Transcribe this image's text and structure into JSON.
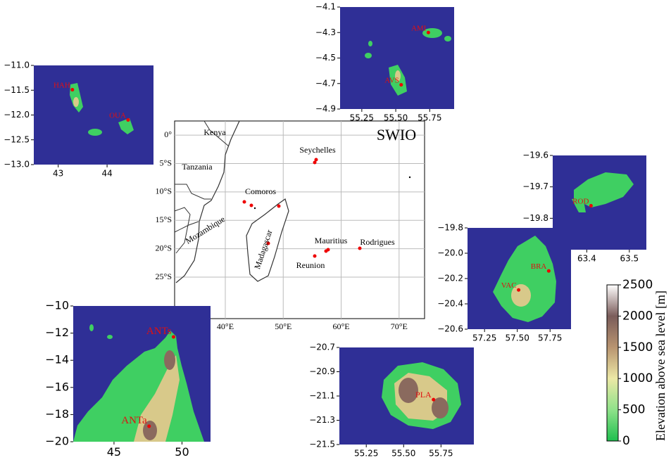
{
  "main_map": {
    "title": "SWIO",
    "xlim": [
      31.25,
      74.4
    ],
    "ylim": [
      -32.3,
      2.5
    ],
    "xticks": [
      {
        "value": 40,
        "label": "40°E"
      },
      {
        "value": 50,
        "label": "50°E"
      },
      {
        "value": 60,
        "label": "60°E"
      },
      {
        "value": 70,
        "label": "70°E"
      }
    ],
    "yticks": [
      {
        "value": 0,
        "label": "0°"
      },
      {
        "value": -5,
        "label": "5°S"
      },
      {
        "value": -10,
        "label": "10°S"
      },
      {
        "value": -15,
        "label": "15°S"
      },
      {
        "value": -20,
        "label": "20°S"
      },
      {
        "value": -25,
        "label": "25°S"
      }
    ],
    "countries": [
      "Kenya",
      "Tanzania",
      "Mozambique",
      "Madagascar"
    ],
    "regions": [
      "Comoros",
      "Seychelles",
      "Mauritius",
      "Reunion",
      "Rodrigues"
    ]
  },
  "insets": [
    {
      "xlim": [
        42.5,
        44.95
      ],
      "ylim": [
        -13.0,
        -11.0
      ],
      "xticks": [
        43,
        44
      ],
      "yticks": [
        {
          "value": -11.0,
          "label": "−11.0"
        },
        {
          "value": -11.5,
          "label": "−11.5"
        },
        {
          "value": -12.0,
          "label": "−12.0"
        },
        {
          "value": -12.5,
          "label": "−12.5"
        },
        {
          "value": -13.0,
          "label": "−13.0"
        }
      ],
      "stations": [
        {
          "label": "HAH",
          "lon": 43.29,
          "lat": -11.49
        },
        {
          "label": "OUA",
          "lon": 44.43,
          "lat": -12.1
        }
      ]
    },
    {
      "xlim": [
        55.09,
        55.93
      ],
      "ylim": [
        -4.9,
        -4.1
      ],
      "xticks": [
        55.25,
        {
          "value": 55.5,
          "label": "55.50"
        },
        55.75
      ],
      "yticks": [
        {
          "value": -4.1,
          "label": "−4.1"
        },
        {
          "value": -4.3,
          "label": "−4.3"
        },
        {
          "value": -4.5,
          "label": "−4.5"
        },
        {
          "value": -4.7,
          "label": "−4.7"
        },
        {
          "value": -4.9,
          "label": "−4.9"
        }
      ],
      "stations": [
        {
          "label": "AMI",
          "lon": 55.74,
          "lat": -4.3
        },
        {
          "label": "AVS",
          "lon": 55.54,
          "lat": -4.71
        }
      ]
    },
    {
      "xlim": [
        63.32,
        63.54
      ],
      "ylim": [
        -19.9,
        -19.6
      ],
      "xticks": [
        63.4,
        63.5
      ],
      "yticks": [
        {
          "value": -19.6,
          "label": "−19.6"
        },
        {
          "value": -19.7,
          "label": "−19.7"
        },
        {
          "value": -19.8,
          "label": "−19.8"
        }
      ],
      "stations": [
        {
          "label": "ROD",
          "lon": 63.41,
          "lat": -19.76
        }
      ]
    },
    {
      "xlim": [
        57.12,
        57.91
      ],
      "ylim": [
        -20.6,
        -19.8
      ],
      "xticks": [
        57.25,
        {
          "value": 57.5,
          "label": "57.50"
        },
        57.75
      ],
      "yticks": [
        {
          "value": -19.8,
          "label": "−19.8"
        },
        {
          "value": -20.0,
          "label": "−20.0"
        },
        {
          "value": -20.2,
          "label": "−20.2"
        },
        {
          "value": -20.4,
          "label": "−20.4"
        },
        {
          "value": -20.6,
          "label": "−20.6"
        }
      ],
      "stations": [
        {
          "label": "BRA",
          "lon": 57.74,
          "lat": -20.14
        },
        {
          "label": "VAC",
          "lon": 57.51,
          "lat": -20.29
        }
      ]
    },
    {
      "xlim": [
        42.0,
        52.1
      ],
      "ylim": [
        -20,
        -10
      ],
      "xticks": [
        45,
        50
      ],
      "yticks": [
        {
          "value": -10,
          "label": "−10"
        },
        {
          "value": -12,
          "label": "−12"
        },
        {
          "value": -14,
          "label": "−14"
        },
        {
          "value": -16,
          "label": "−16"
        },
        {
          "value": -18,
          "label": "−18"
        },
        {
          "value": -20,
          "label": "−20"
        }
      ],
      "stations": [
        {
          "label": "ANTs",
          "lon": 49.38,
          "lat": -12.28
        },
        {
          "label": "ANTa",
          "lon": 47.58,
          "lat": -18.86
        }
      ]
    },
    {
      "xlim": [
        55.07,
        55.97
      ],
      "ylim": [
        -21.5,
        -20.7
      ],
      "xticks": [
        55.25,
        {
          "value": 55.5,
          "label": "55.50"
        },
        55.75
      ],
      "yticks": [
        {
          "value": -20.7,
          "label": "−20.7"
        },
        {
          "value": -20.9,
          "label": "−20.9"
        },
        {
          "value": -21.1,
          "label": "−21.1"
        },
        {
          "value": -21.3,
          "label": "−21.3"
        },
        {
          "value": -21.5,
          "label": "−21.5"
        }
      ],
      "stations": [
        {
          "label": "PLA",
          "lon": 55.7,
          "lat": -21.13
        }
      ]
    }
  ],
  "colorbar": {
    "label": "Elevation above sea level [m]",
    "lim": [
      0,
      2500
    ],
    "ticks": [
      0,
      500,
      1000,
      1500,
      2000,
      2500
    ]
  }
}
